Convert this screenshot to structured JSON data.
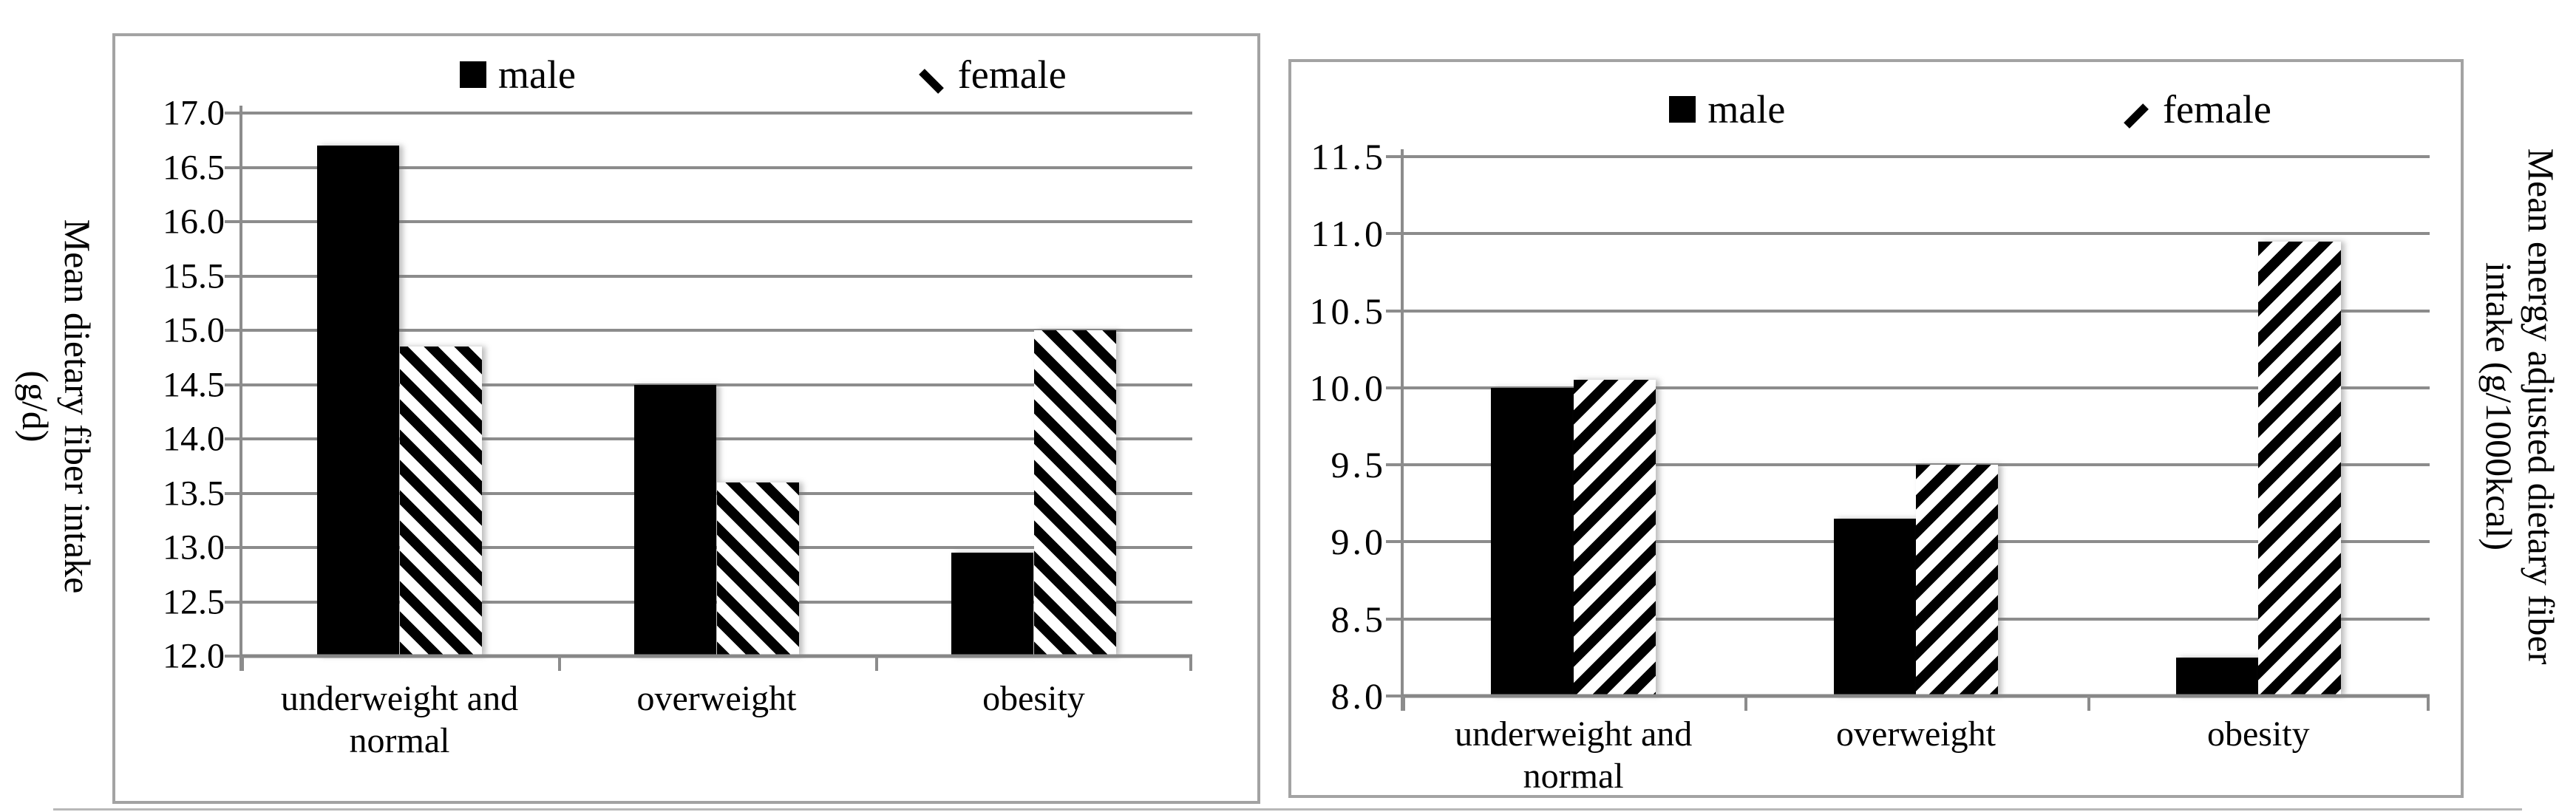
{
  "colors": {
    "bar_fill": "#000000",
    "gridline": "#8c8c8c",
    "panel_border": "#a3a3a3",
    "text": "#000000",
    "background": "#ffffff"
  },
  "chart_data": [
    {
      "type": "bar",
      "title": "",
      "y_axis_title": [
        "Mean dietary fiber intake",
        "(g/d)"
      ],
      "xlabel": "",
      "ylim": [
        12.0,
        17.0
      ],
      "ytick_step": 0.5,
      "y_tick_labels": [
        "17.0",
        "16.5",
        "16.0",
        "15.5",
        "15.0",
        "14.5",
        "14.0",
        "13.5",
        "13.0",
        "12.5",
        "12.0"
      ],
      "grid": true,
      "legend_position": "top-inside",
      "categories": [
        "underweight and normal",
        "overweight",
        "obesity"
      ],
      "series": [
        {
          "name": "male",
          "pattern": "solid-black",
          "values": [
            16.7,
            14.5,
            12.95
          ]
        },
        {
          "name": "female",
          "pattern": "diagonal-hatch-backslash",
          "values": [
            14.85,
            13.6,
            15.0
          ]
        }
      ],
      "legend": [
        {
          "label": "male",
          "swatch": "solid-black-square"
        },
        {
          "label": "female",
          "swatch": "backslash-stroke"
        }
      ]
    },
    {
      "type": "bar",
      "title": "",
      "y_axis_title": [
        "Mean energy adjusted dietary fiber",
        "intake (g/1000kcal)"
      ],
      "xlabel": "",
      "ylim": [
        8.0,
        11.5
      ],
      "ytick_step": 0.5,
      "y_tick_labels": [
        "11.5",
        "11.0",
        "10.5",
        "10.0",
        "9.5",
        "9.0",
        "8.5",
        "8.0"
      ],
      "grid": true,
      "legend_position": "top-inside",
      "categories": [
        "underweight and normal",
        "overweight",
        "obesity"
      ],
      "series": [
        {
          "name": "male",
          "pattern": "solid-black",
          "values": [
            10.0,
            9.15,
            8.25
          ]
        },
        {
          "name": "female",
          "pattern": "diagonal-hatch-slash",
          "values": [
            10.05,
            9.5,
            10.95
          ]
        }
      ],
      "legend": [
        {
          "label": "male",
          "swatch": "solid-black-square"
        },
        {
          "label": "female",
          "swatch": "slash-stroke"
        }
      ]
    }
  ]
}
